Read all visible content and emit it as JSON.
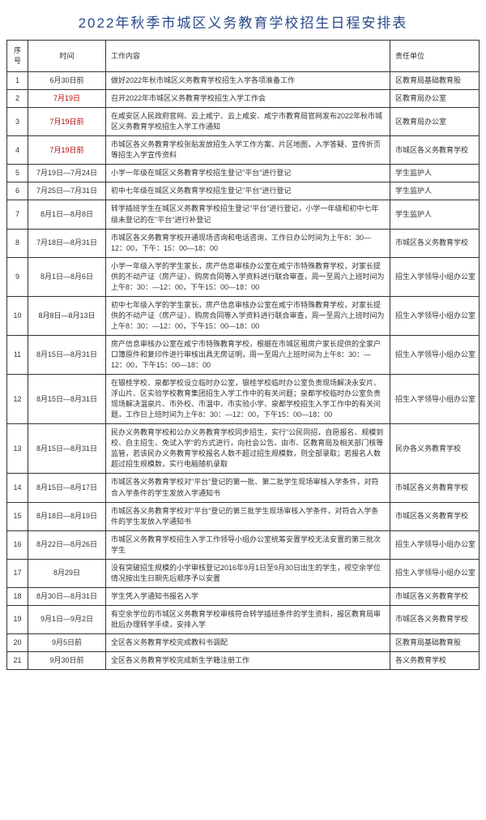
{
  "title": "2022年秋季市城区义务教育学校招生日程安排表",
  "table": {
    "headers": [
      "序号",
      "时间",
      "工作内容",
      "责任单位"
    ],
    "rows": [
      {
        "num": "1",
        "time": "6月30日前",
        "time_red": false,
        "content": "做好2022年秋市城区义务教育学校招生入学各项准备工作",
        "unit": "区教育局基础教育股"
      },
      {
        "num": "2",
        "time": "7月19日",
        "time_red": true,
        "content": "召开2022年市城区义务教育学校招生入学工作会",
        "unit": "区教育局办公室"
      },
      {
        "num": "3",
        "time": "7月19日前",
        "time_red": true,
        "content": "在咸安区人民政府官网、云上咸宁、云上咸安、咸宁市教育局官网发布2022年秋市城区义务教育学校招生入学工作通知",
        "unit": "区教育局办公室"
      },
      {
        "num": "4",
        "time": "7月19日前",
        "time_red": true,
        "content": "市城区各义务教育学校张贴发放招生入学工作方案、片区地图，入学答疑、宣传折页等招生入学宣传资料",
        "unit": "市城区各义务教育学校"
      },
      {
        "num": "5",
        "time": "7月19日—7月24日",
        "time_red": false,
        "content": "小学一年级在城区义务教育学校招生登记\"平台\"进行登记",
        "unit": "学生监护人"
      },
      {
        "num": "6",
        "time": "7月25日—7月31日",
        "time_red": false,
        "content": "初中七年级在城区义务教育学校招生登记\"平台\"进行登记",
        "unit": "学生监护人"
      },
      {
        "num": "7",
        "time": "8月1日—8月8日",
        "time_red": false,
        "content": "转学插班学生在城区义务教育学校招生登记\"平台\"进行登记，小学一年级和初中七年级未登记的在\"平台\"进行补登记",
        "unit": "学生监护人"
      },
      {
        "num": "8",
        "time": "7月18日—8月31日",
        "time_red": false,
        "content": "市城区各义务教育学校开通现场咨询和电话咨询，工作日办公时间为上午8：30—12：00，下午：15：00—18：00",
        "unit": "市城区各义务教育学校"
      },
      {
        "num": "9",
        "time": "8月1日—8月6日",
        "time_red": false,
        "content": "小学一年级入学的学生家长，房产信息审核办公室在咸宁市特殊教育学校，对家长提供的不动产证（房产证）、购房合同等入学资料进行联合审查，周一至周六上班时间为上午8：30：—12：00，下午15：00—18：00",
        "unit": "招生入学领导小组办公室"
      },
      {
        "num": "10",
        "time": "8月8日—8月13日",
        "time_red": false,
        "content": "初中七年级入学的学生家长，房产信息审核办公室在咸宁市特殊教育学校，对家长提供的不动产证（房产证）、购房合同等入学资料进行联合审查，周一至周六上班时间为上午8：30：—12：00，下午15：00—18：00",
        "unit": "招生入学领导小组办公室"
      },
      {
        "num": "11",
        "time": "8月15日—8月31日",
        "time_red": false,
        "content": "房产信息审核办公室在咸宁市特殊教育学校，根据在市城区租房户家长提供的全家户口簿原件和复印件进行审核出具无房证明，周一至周六上班时间为上午8：30：—12：00，下午15：00—18：00",
        "unit": "招生入学领导小组办公室"
      },
      {
        "num": "12",
        "time": "8月15日—8月31日",
        "time_red": false,
        "content": "在银桂学校、泉都学校设立临时办公室，银桂学校临时办公室负责现场解决永安片、浮山片、区实验学校教育集团招生入学工作中的有关问题；泉都学校临时办公室负责现场解决温泉片、市外校、市温中、市实验小学、泉都学校招生入学工作中的有关问题，工作日上班时间为上午8：30：—12：00，下午15：00—18：00",
        "unit": "招生入学领导小组办公室"
      },
      {
        "num": "13",
        "time": "8月15日—8月31日",
        "time_red": false,
        "content": "民办义务教育学校和公办义务教育学校同步招生，实行\"公民同招，自愿报名、规模到校、自主招生、免试入学\"的方式进行，向社会公告。由市、区教育局及相关部门核等监管，若该民办义务教育学校报名人数不超过招生规模数，则全部录取；若报名人数超过招生规模数，实行电脑随机录取",
        "unit": "民办各义务教育学校"
      },
      {
        "num": "14",
        "time": "8月15日—8月17日",
        "time_red": false,
        "content": "市城区各义务教育学校对\"平台\"登记的第一批、第二批学生现场审核入学条件，对符合入学条件的学生发放入学通知书",
        "unit": "市城区各义务教育学校"
      },
      {
        "num": "15",
        "time": "8月18日—8月19日",
        "time_red": false,
        "content": "市城区各义务教育学校对\"平台\"登记的第三批学生现场审核入学条件，对符合入学条件的学生发放入学通知书",
        "unit": "市城区各义务教育学校"
      },
      {
        "num": "16",
        "time": "8月22日—8月26日",
        "time_red": false,
        "content": "市城区义务教育学校招生入学工作领导小组办公室统筹安置学校无法安置的第三批次学生",
        "unit": "招生入学领导小组办公室"
      },
      {
        "num": "17",
        "time": "8月29日",
        "time_red": false,
        "content": "没有突破招生规模的小学审核登记2016年9月1日至9月30日出生的学生，视空余学位情况按出生日期先后顺序予以安置",
        "unit": "招生入学领导小组办公室"
      },
      {
        "num": "18",
        "time": "8月30日—8月31日",
        "time_red": false,
        "content": "学生凭入学通知书报名入学",
        "unit": "市城区各义务教育学校"
      },
      {
        "num": "19",
        "time": "9月1日—9月2日",
        "time_red": false,
        "content": "有空余学位的市城区义务教育学校审核符合转学插班条件的学生资料，报区教育局审批后办理转学手续，安排入学",
        "unit": "市城区各义务教育学校"
      },
      {
        "num": "20",
        "time": "9月5日前",
        "time_red": false,
        "content": "全区各义务教育学校完成教科书调配",
        "unit": "区教育局基础教育股"
      },
      {
        "num": "21",
        "time": "9月30日前",
        "time_red": false,
        "content": "全区各义务教育学校完成新生学籍注册工作",
        "unit": "各义务教育学校"
      }
    ]
  }
}
